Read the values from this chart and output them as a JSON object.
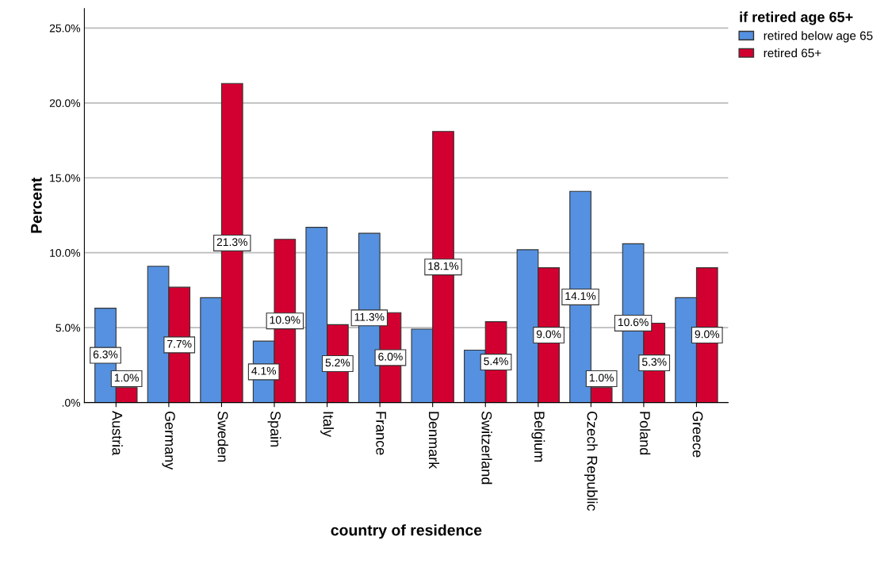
{
  "chart_data": {
    "type": "bar",
    "xlabel": "country of residence",
    "ylabel": "Percent",
    "legend_title": "if retired age 65+",
    "categories": [
      "Austria",
      "Germany",
      "Sweden",
      "Spain",
      "Italy",
      "France",
      "Denmark",
      "Switzerland",
      "Belgium",
      "Czech Republic",
      "Poland",
      "Greece"
    ],
    "series": [
      {
        "name": "retired below age 65",
        "color": "#5591e0",
        "values": [
          6.3,
          9.1,
          7.0,
          4.1,
          11.7,
          11.3,
          4.9,
          3.5,
          10.2,
          14.1,
          10.6,
          7.0
        ],
        "value_labels": [
          "6.3%",
          null,
          null,
          "4.1%",
          null,
          "11.3%",
          null,
          null,
          null,
          "14.1%",
          "10.6%",
          null
        ]
      },
      {
        "name": "retired 65+",
        "color": "#d20030",
        "values": [
          1.0,
          7.7,
          21.3,
          10.9,
          5.2,
          6.0,
          18.1,
          5.4,
          9.0,
          1.0,
          5.3,
          9.0
        ],
        "value_labels": [
          "1.0%",
          "7.7%",
          "21.3%",
          "10.9%",
          "5.2%",
          "6.0%",
          "18.1%",
          "5.4%",
          "9.0%",
          "1.0%",
          "5.3%",
          "9.0%"
        ]
      }
    ],
    "ylim": [
      0,
      26.3
    ],
    "yticks": [
      {
        "value": 0,
        "label": ".0%"
      },
      {
        "value": 5,
        "label": "5.0%"
      },
      {
        "value": 10,
        "label": "10.0%"
      },
      {
        "value": 15,
        "label": "15.0%"
      },
      {
        "value": 20,
        "label": "20.0%"
      },
      {
        "value": 25,
        "label": "25.0%"
      }
    ],
    "grid": "y",
    "legend": "top right"
  }
}
